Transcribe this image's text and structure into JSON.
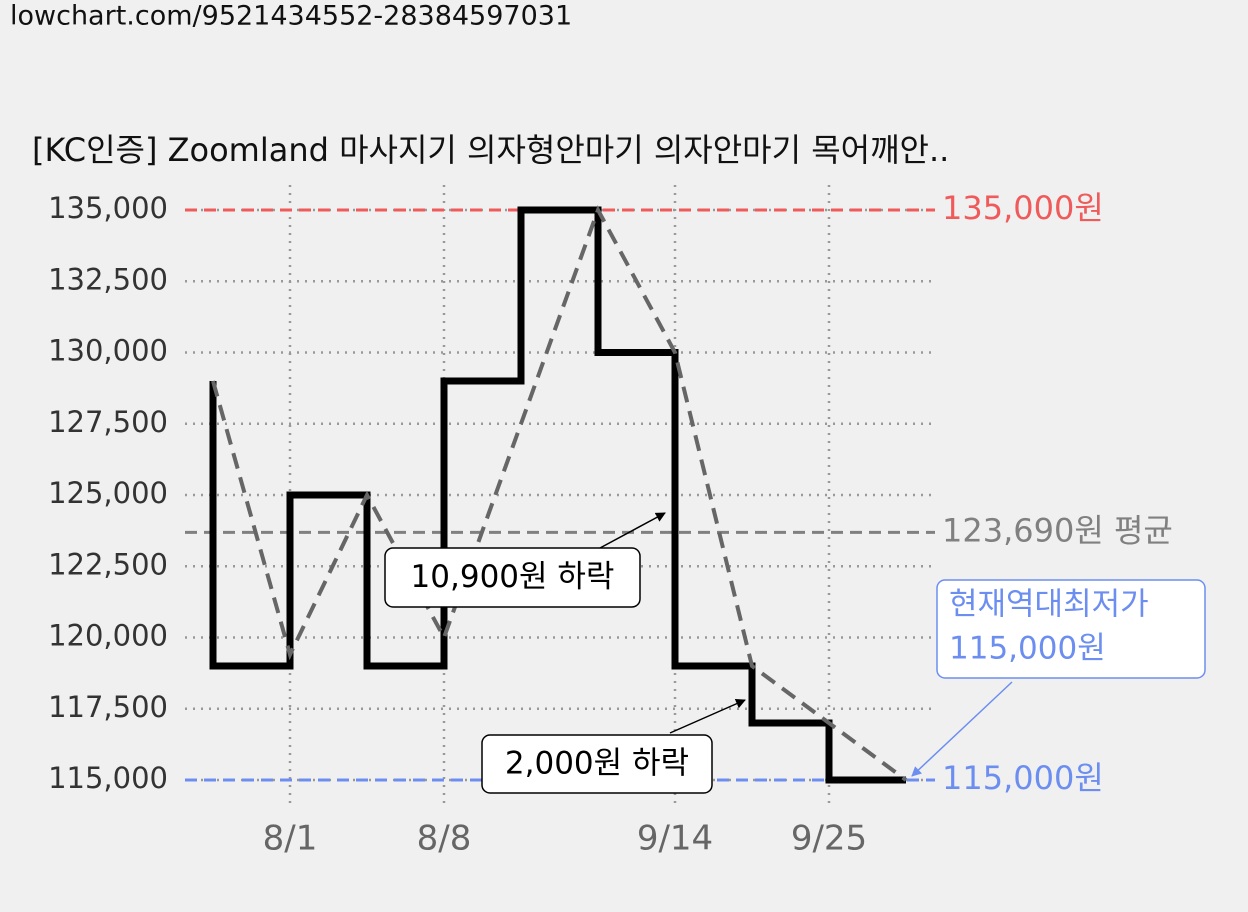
{
  "header": {
    "url": "lowchart.com/9521434552-28384597031"
  },
  "chart_data": {
    "type": "step-line",
    "title": "[KC인증] Zoomland 마사지기 의자형안마기 의자안마기 목어깨안..",
    "categories": [
      null,
      "8/1",
      null,
      "8/8",
      null,
      null,
      "9/14",
      null,
      "9/25",
      null
    ],
    "series": [
      {
        "color": "#000000",
        "step": "pre",
        "values": [
          129000,
          119000,
          125000,
          119000,
          129000,
          135000,
          130000,
          119000,
          117000,
          115000
        ]
      },
      {
        "color": "#666666",
        "dashed": true,
        "values": [
          129000,
          119400,
          125000,
          120000,
          127500,
          135000,
          130000,
          119000,
          117000,
          115000
        ]
      }
    ],
    "ylim": [
      115000,
      135000
    ],
    "yticks": [
      {
        "value": 115000,
        "label": "115,000"
      },
      {
        "value": 117500,
        "label": "117,500"
      },
      {
        "value": 120000,
        "label": "120,000"
      },
      {
        "value": 122500,
        "label": "122,500"
      },
      {
        "value": 125000,
        "label": "125,000"
      },
      {
        "value": 127500,
        "label": "127,500"
      },
      {
        "value": 130000,
        "label": "130,000"
      },
      {
        "value": 132500,
        "label": "132,500"
      },
      {
        "value": 135000,
        "label": "135,000"
      }
    ],
    "grid": true,
    "reference_lines": [
      {
        "value": 135000,
        "label": "135,000원",
        "color": "#f05a5a"
      },
      {
        "value": 123690,
        "label": "123,690원 평균",
        "color": "#808080"
      },
      {
        "value": 115000,
        "label": "115,000원",
        "color": "#6c8ef0"
      }
    ],
    "annotations": [
      {
        "text": "10,900원 하락"
      },
      {
        "text": "2,000원 하락"
      },
      {
        "lines": [
          "현재역대최저가",
          "115,000원"
        ],
        "color": "#6c8ef0"
      }
    ]
  }
}
